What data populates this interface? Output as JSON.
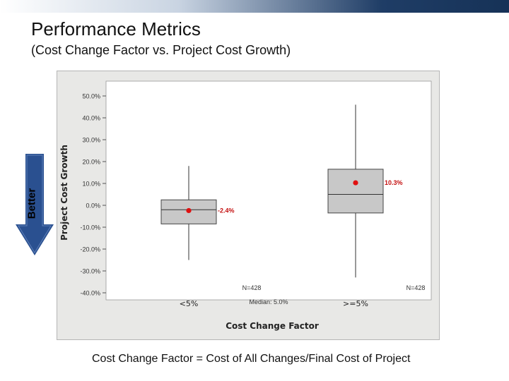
{
  "header": {
    "title": "Performance Metrics",
    "subtitle": "(Cost Change Factor vs. Project Cost Growth)"
  },
  "better_label": "Better",
  "footnote": "Cost Change Factor = Cost of  All Changes/Final Cost of Project",
  "colors": {
    "band_dark": "#1f3d66",
    "arrow_blue": "#2a5090",
    "box_fill": "#c8c8c8",
    "mean_marker": "#e01010",
    "mean_label": "#c41010"
  },
  "chart_data": {
    "type": "box",
    "xlabel": "Cost Change Factor",
    "ylabel": "Project Cost Growth",
    "ylim": [
      -40,
      50
    ],
    "y_ticks": [
      50,
      40,
      30,
      20,
      10,
      0,
      -10,
      -20,
      -30,
      -40
    ],
    "y_tick_labels": [
      "50.0%",
      "40.0%",
      "30.0%",
      "20.0%",
      "10.0%",
      "0.0%",
      "-10.0%",
      "-20.0%",
      "-30.0%",
      "-40.0%"
    ],
    "categories": [
      "<5%",
      ">=5%"
    ],
    "boxes": [
      {
        "category": "<5%",
        "whisker_low": -25,
        "q1": -8.5,
        "median": -2,
        "q3": 2.5,
        "whisker_high": 18,
        "mean": -2.4,
        "mean_label": "-2.4%",
        "n_label": "N=428"
      },
      {
        "category": ">=5%",
        "whisker_low": -33,
        "q1": -3.5,
        "median": 5,
        "q3": 16.5,
        "whisker_high": 46,
        "mean": 10.3,
        "mean_label": "10.3%",
        "n_label": "N=428"
      }
    ],
    "annotation": "Median: 5.0%",
    "grid": false
  }
}
